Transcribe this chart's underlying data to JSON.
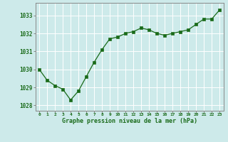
{
  "x": [
    0,
    1,
    2,
    3,
    4,
    5,
    6,
    7,
    8,
    9,
    10,
    11,
    12,
    13,
    14,
    15,
    16,
    17,
    18,
    19,
    20,
    21,
    22,
    23
  ],
  "y": [
    1030.0,
    1029.4,
    1029.1,
    1028.9,
    1028.3,
    1028.8,
    1029.6,
    1030.4,
    1031.1,
    1031.7,
    1031.8,
    1032.0,
    1032.1,
    1032.3,
    1032.2,
    1032.0,
    1031.9,
    1032.0,
    1032.1,
    1032.2,
    1032.5,
    1032.8,
    1032.8,
    1033.3
  ],
  "xlabel": "Graphe pression niveau de la mer (hPa)",
  "ylim": [
    1027.7,
    1033.7
  ],
  "yticks": [
    1028,
    1029,
    1030,
    1031,
    1032,
    1033
  ],
  "xtick_labels": [
    "0",
    "1",
    "2",
    "3",
    "4",
    "5",
    "6",
    "7",
    "8",
    "9",
    "10",
    "11",
    "12",
    "13",
    "14",
    "15",
    "16",
    "17",
    "18",
    "19",
    "20",
    "21",
    "22",
    "23"
  ],
  "line_color": "#1a6b1a",
  "marker_color": "#1a6b1a",
  "bg_color": "#cdeaea",
  "grid_color": "#b0d4d4",
  "border_color": "#888888",
  "xlabel_color": "#1a6b1a",
  "tick_label_color": "#1a6b1a"
}
